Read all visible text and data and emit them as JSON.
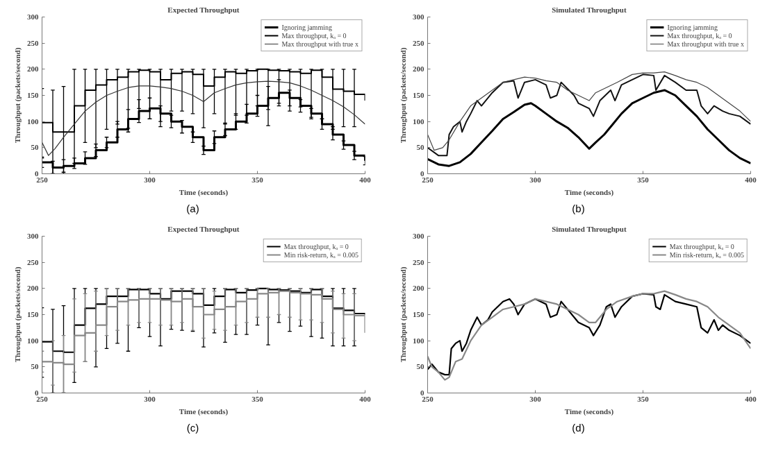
{
  "chart_data": [
    {
      "type": "step",
      "title": "Expected Throughput",
      "xlabel": "Time (seconds)",
      "ylabel": "Throughput (packets/second)",
      "annotations": [
        "(a)"
      ],
      "xlim": [
        250,
        400
      ],
      "ylim": [
        0,
        300
      ],
      "xticks": [
        250,
        300,
        350,
        400
      ],
      "yticks": [
        0,
        50,
        100,
        150,
        200,
        250,
        300
      ],
      "legend": "top right",
      "grid": false,
      "line_style": "solid",
      "x": [
        250,
        255,
        260,
        265,
        270,
        275,
        280,
        285,
        290,
        295,
        300,
        305,
        310,
        315,
        320,
        325,
        330,
        335,
        340,
        345,
        350,
        355,
        360,
        365,
        370,
        375,
        380,
        385,
        390,
        395,
        400
      ],
      "series": [
        {
          "name": "Ignoring jamming",
          "color": "#000000",
          "values": [
            22,
            12,
            15,
            20,
            30,
            45,
            60,
            85,
            105,
            120,
            125,
            115,
            100,
            90,
            70,
            45,
            70,
            85,
            100,
            115,
            130,
            145,
            155,
            145,
            130,
            115,
            95,
            75,
            55,
            35,
            25
          ],
          "errors": [
            10,
            12,
            12,
            10,
            12,
            12,
            10,
            15,
            18,
            22,
            20,
            15,
            12,
            12,
            10,
            8,
            12,
            12,
            15,
            18,
            20,
            22,
            25,
            15,
            12,
            10,
            10,
            10,
            8,
            8,
            8
          ]
        },
        {
          "name": "Max throughput, kₐ = 0",
          "color": "#000000",
          "values": [
            98,
            80,
            80,
            130,
            160,
            170,
            180,
            185,
            195,
            198,
            195,
            180,
            192,
            195,
            190,
            168,
            185,
            195,
            192,
            197,
            200,
            198,
            197,
            195,
            192,
            198,
            185,
            162,
            158,
            152,
            140
          ],
          "errors": [
            [
              30,
              163
            ],
            [
              0,
              160
            ],
            [
              0,
              167
            ],
            [
              20,
              200
            ],
            [
              60,
              200
            ],
            [
              50,
              200
            ],
            [
              85,
              200
            ],
            [
              95,
              200
            ],
            [
              80,
              200
            ],
            [
              125,
              200
            ],
            [
              105,
              200
            ],
            [
              90,
              200
            ],
            [
              120,
              200
            ],
            [
              120,
              200
            ],
            [
              115,
              200
            ],
            [
              88,
              200
            ],
            [
              115,
              200
            ],
            [
              95,
              200
            ],
            [
              112,
              200
            ],
            [
              112,
              200
            ],
            [
              130,
              200
            ],
            [
              92,
              200
            ],
            [
              135,
              200
            ],
            [
              120,
              200
            ],
            [
              128,
              200
            ],
            [
              108,
              200
            ],
            [
              105,
              200
            ],
            [
              90,
              200
            ],
            [
              90,
              200
            ],
            [
              90,
              200
            ],
            null
          ]
        },
        {
          "name": "Max throughput with true x",
          "type": "line",
          "color": "#333333",
          "x": [
            250,
            253,
            256,
            260,
            265,
            270,
            275,
            280,
            285,
            290,
            295,
            300,
            305,
            310,
            315,
            320,
            325,
            330,
            335,
            340,
            345,
            350,
            355,
            360,
            365,
            370,
            375,
            380,
            385,
            390,
            395,
            400
          ],
          "values": [
            60,
            35,
            48,
            70,
            95,
            120,
            137,
            150,
            158,
            165,
            168,
            168,
            166,
            163,
            158,
            150,
            138,
            155,
            163,
            170,
            174,
            176,
            177,
            176,
            174,
            168,
            160,
            150,
            140,
            128,
            113,
            95
          ]
        }
      ]
    },
    {
      "type": "line",
      "title": "Simulated Throughput",
      "xlabel": "Time (seconds)",
      "ylabel": "Throughput (packets/second)",
      "annotations": [
        "(b)"
      ],
      "xlim": [
        250,
        400
      ],
      "ylim": [
        0,
        300
      ],
      "xticks": [
        250,
        300,
        350,
        400
      ],
      "yticks": [
        0,
        50,
        100,
        150,
        200,
        250,
        300
      ],
      "legend": "top right",
      "grid": false,
      "line_style": "solid",
      "series": [
        {
          "name": "Ignoring jamming",
          "color": "#000000",
          "x": [
            250,
            255,
            260,
            265,
            270,
            275,
            280,
            285,
            290,
            295,
            298,
            300,
            305,
            310,
            315,
            320,
            325,
            328,
            332,
            336,
            340,
            345,
            350,
            355,
            360,
            365,
            370,
            375,
            380,
            385,
            390,
            395,
            400
          ],
          "values": [
            28,
            18,
            15,
            22,
            38,
            60,
            82,
            105,
            118,
            132,
            135,
            130,
            115,
            100,
            88,
            70,
            48,
            60,
            75,
            95,
            115,
            135,
            145,
            155,
            160,
            150,
            130,
            110,
            85,
            65,
            45,
            30,
            20
          ]
        },
        {
          "name": "Max throughput, kₐ = 0",
          "color": "#111111",
          "x": [
            250,
            255,
            259,
            260,
            262,
            265,
            266,
            268,
            270,
            273,
            275,
            280,
            285,
            290,
            292,
            295,
            300,
            305,
            307,
            310,
            312,
            318,
            320,
            325,
            327,
            330,
            335,
            337,
            340,
            345,
            350,
            355,
            356,
            360,
            365,
            370,
            375,
            377,
            380,
            383,
            387,
            390,
            395,
            400
          ],
          "values": [
            50,
            35,
            35,
            75,
            90,
            100,
            80,
            100,
            115,
            140,
            130,
            155,
            175,
            178,
            145,
            175,
            180,
            170,
            145,
            150,
            175,
            150,
            135,
            125,
            110,
            140,
            160,
            140,
            170,
            180,
            190,
            188,
            160,
            188,
            175,
            160,
            160,
            130,
            115,
            130,
            120,
            115,
            110,
            95
          ]
        },
        {
          "name": "Max throughput with true x",
          "color": "#444444",
          "x": [
            250,
            253,
            257,
            260,
            265,
            270,
            275,
            280,
            285,
            290,
            295,
            300,
            305,
            310,
            315,
            320,
            325,
            328,
            333,
            338,
            345,
            350,
            355,
            360,
            365,
            370,
            375,
            380,
            385,
            390,
            395,
            400
          ],
          "values": [
            75,
            45,
            50,
            65,
            100,
            130,
            145,
            160,
            175,
            180,
            185,
            183,
            178,
            175,
            160,
            150,
            140,
            155,
            165,
            175,
            190,
            193,
            193,
            195,
            188,
            180,
            175,
            165,
            150,
            135,
            120,
            100
          ]
        }
      ]
    },
    {
      "type": "step",
      "title": "Expected Throughput",
      "xlabel": "Time (seconds)",
      "ylabel": "Throughput (packets/second)",
      "annotations": [
        "(c)"
      ],
      "xlim": [
        250,
        400
      ],
      "ylim": [
        0,
        300
      ],
      "xticks": [
        250,
        300,
        350,
        400
      ],
      "yticks": [
        0,
        50,
        100,
        150,
        200,
        250,
        300
      ],
      "legend": "top right",
      "grid": false,
      "line_style": "solid",
      "x": [
        250,
        255,
        260,
        265,
        270,
        275,
        280,
        285,
        290,
        295,
        300,
        305,
        310,
        315,
        320,
        325,
        330,
        335,
        340,
        345,
        350,
        355,
        360,
        365,
        370,
        375,
        380,
        385,
        390,
        395,
        400
      ],
      "series": [
        {
          "name": "Max throughput, kₐ = 0",
          "color": "#000000",
          "values": [
            98,
            80,
            78,
            130,
            162,
            170,
            185,
            185,
            198,
            198,
            190,
            180,
            195,
            195,
            190,
            168,
            185,
            198,
            192,
            197,
            200,
            198,
            197,
            195,
            192,
            198,
            185,
            162,
            158,
            152,
            150
          ],
          "errors": [
            [
              30,
              163
            ],
            [
              0,
              160
            ],
            [
              0,
              167
            ],
            [
              20,
              200
            ],
            [
              60,
              200
            ],
            [
              50,
              200
            ],
            [
              85,
              200
            ],
            [
              95,
              200
            ],
            [
              80,
              200
            ],
            [
              125,
              200
            ],
            [
              108,
              200
            ],
            [
              90,
              200
            ],
            [
              122,
              200
            ],
            [
              120,
              200
            ],
            [
              118,
              200
            ],
            [
              88,
              200
            ],
            [
              115,
              200
            ],
            [
              97,
              200
            ],
            [
              112,
              200
            ],
            [
              112,
              200
            ],
            [
              130,
              200
            ],
            [
              92,
              200
            ],
            [
              135,
              200
            ],
            [
              118,
              200
            ],
            [
              128,
              200
            ],
            [
              108,
              200
            ],
            [
              105,
              200
            ],
            [
              90,
              200
            ],
            [
              90,
              200
            ],
            [
              90,
              200
            ],
            null
          ]
        },
        {
          "name": "Min risk-return, kₐ = 0.005",
          "color": "#888888",
          "values": [
            60,
            58,
            55,
            110,
            115,
            130,
            165,
            175,
            178,
            180,
            180,
            178,
            175,
            180,
            165,
            150,
            160,
            165,
            175,
            180,
            190,
            192,
            195,
            192,
            190,
            188,
            180,
            160,
            150,
            148,
            115
          ],
          "errors": [
            [
              40,
              80
            ],
            [
              15,
              100
            ],
            [
              0,
              110
            ],
            [
              40,
              180
            ],
            [
              60,
              190
            ],
            [
              80,
              195
            ],
            [
              110,
              200
            ],
            [
              120,
              200
            ],
            [
              130,
              200
            ],
            [
              135,
              200
            ],
            [
              135,
              200
            ],
            [
              130,
              200
            ],
            [
              130,
              200
            ],
            [
              135,
              200
            ],
            [
              120,
              200
            ],
            [
              105,
              200
            ],
            [
              122,
              195
            ],
            [
              120,
              200
            ],
            [
              130,
              200
            ],
            [
              135,
              200
            ],
            [
              145,
              200
            ],
            [
              145,
              200
            ],
            [
              150,
              200
            ],
            [
              145,
              200
            ],
            [
              140,
              200
            ],
            [
              140,
              200
            ],
            [
              135,
              200
            ],
            [
              115,
              195
            ],
            [
              105,
              190
            ],
            [
              100,
              190
            ],
            null
          ]
        }
      ]
    },
    {
      "type": "line",
      "title": "Simulated Throughput",
      "xlabel": "Time (seconds)",
      "ylabel": "Throughput (packets/second)",
      "annotations": [
        "(d)"
      ],
      "xlim": [
        250,
        400
      ],
      "ylim": [
        0,
        300
      ],
      "xticks": [
        250,
        300,
        350,
        400
      ],
      "yticks": [
        0,
        50,
        100,
        150,
        200,
        250,
        300
      ],
      "legend": "top right",
      "grid": false,
      "line_style": "solid",
      "series": [
        {
          "name": "Max throughput, kₐ = 0",
          "color": "#000000",
          "x": [
            250,
            252,
            255,
            258,
            260,
            261,
            263,
            265,
            266,
            268,
            270,
            273,
            275,
            278,
            280,
            285,
            288,
            290,
            292,
            295,
            300,
            305,
            307,
            310,
            312,
            318,
            320,
            325,
            327,
            330,
            333,
            335,
            337,
            340,
            345,
            350,
            355,
            356,
            358,
            360,
            365,
            370,
            375,
            377,
            380,
            383,
            385,
            387,
            390,
            395,
            400
          ],
          "values": [
            45,
            55,
            40,
            35,
            35,
            85,
            95,
            100,
            80,
            95,
            120,
            145,
            130,
            140,
            155,
            175,
            180,
            170,
            150,
            170,
            180,
            170,
            145,
            150,
            175,
            145,
            135,
            125,
            110,
            130,
            165,
            170,
            145,
            165,
            185,
            190,
            188,
            165,
            160,
            188,
            175,
            170,
            165,
            125,
            115,
            140,
            120,
            130,
            120,
            110,
            95
          ]
        },
        {
          "name": "Min risk-return, kₐ = 0.005",
          "color": "#888888",
          "x": [
            250,
            252,
            255,
            258,
            260,
            263,
            266,
            270,
            275,
            280,
            285,
            290,
            295,
            300,
            305,
            310,
            315,
            320,
            325,
            328,
            333,
            338,
            345,
            350,
            355,
            360,
            365,
            370,
            375,
            380,
            385,
            390,
            395,
            400
          ],
          "values": [
            70,
            50,
            40,
            25,
            30,
            60,
            65,
            100,
            130,
            145,
            160,
            165,
            170,
            180,
            175,
            170,
            160,
            150,
            135,
            135,
            160,
            175,
            185,
            190,
            190,
            195,
            188,
            180,
            175,
            165,
            145,
            130,
            115,
            85
          ]
        }
      ]
    }
  ]
}
